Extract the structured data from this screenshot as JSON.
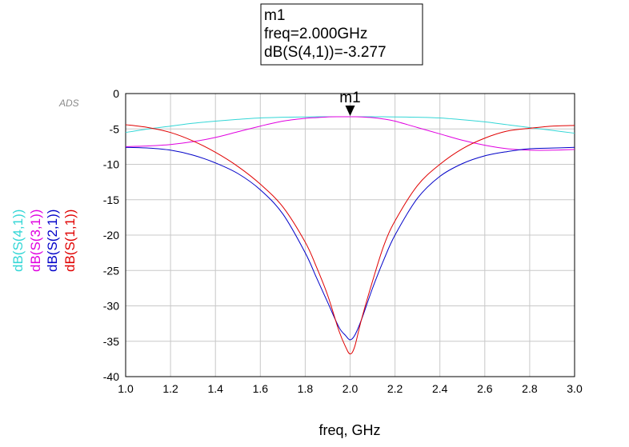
{
  "marker": {
    "name": "m1",
    "lines": [
      "m1",
      "freq=2.000GHz",
      "dB(S(4,1))=-3.277"
    ],
    "x": 2.0,
    "y": -3.277
  },
  "watermark": "ADS",
  "chart_data": {
    "type": "line",
    "xlabel": "freq, GHz",
    "ylabel": "",
    "xlim": [
      1.0,
      3.0
    ],
    "ylim": [
      -40,
      0
    ],
    "x_ticks": [
      "1.0",
      "1.2",
      "1.4",
      "1.6",
      "1.8",
      "2.0",
      "2.2",
      "2.4",
      "2.6",
      "2.8",
      "3.0"
    ],
    "y_ticks": [
      "0",
      "-5",
      "-10",
      "-15",
      "-20",
      "-25",
      "-30",
      "-35",
      "-40"
    ],
    "grid": true,
    "legend": "left-vertical",
    "x": [
      1.0,
      1.1,
      1.2,
      1.3,
      1.4,
      1.5,
      1.6,
      1.7,
      1.8,
      1.85,
      1.9,
      1.95,
      1.98,
      2.0,
      2.02,
      2.05,
      2.1,
      2.15,
      2.2,
      2.3,
      2.4,
      2.5,
      2.6,
      2.7,
      2.8,
      2.9,
      3.0
    ],
    "series": [
      {
        "name": "dB(S(4,1))",
        "color": "#33d6d6",
        "values": [
          -5.5,
          -5.0,
          -4.6,
          -4.2,
          -3.9,
          -3.65,
          -3.45,
          -3.35,
          -3.3,
          -3.28,
          -3.28,
          -3.277,
          -3.277,
          -3.277,
          -3.277,
          -3.277,
          -3.28,
          -3.28,
          -3.3,
          -3.35,
          -3.45,
          -3.7,
          -4.0,
          -4.4,
          -4.8,
          -5.2,
          -5.6
        ]
      },
      {
        "name": "dB(S(3,1))",
        "color": "#e000e0",
        "values": [
          -7.5,
          -7.4,
          -7.2,
          -6.8,
          -6.2,
          -5.4,
          -4.6,
          -3.9,
          -3.5,
          -3.4,
          -3.3,
          -3.28,
          -3.28,
          -3.277,
          -3.28,
          -3.3,
          -3.4,
          -3.6,
          -3.9,
          -4.8,
          -5.7,
          -6.6,
          -7.3,
          -7.8,
          -8.0,
          -8.0,
          -7.9
        ]
      },
      {
        "name": "dB(S(2,1))",
        "color": "#0000c8",
        "values": [
          -7.6,
          -7.7,
          -8.0,
          -8.7,
          -9.8,
          -11.3,
          -13.6,
          -17.0,
          -22.5,
          -26.0,
          -29.5,
          -33.0,
          -34.2,
          -34.8,
          -34.2,
          -32.0,
          -27.5,
          -23.5,
          -20.0,
          -14.8,
          -11.7,
          -9.9,
          -8.8,
          -8.2,
          -7.8,
          -7.7,
          -7.6
        ]
      },
      {
        "name": "dB(S(1,1))",
        "color": "#e00000",
        "values": [
          -4.4,
          -4.8,
          -5.5,
          -6.7,
          -8.3,
          -10.3,
          -12.8,
          -16.0,
          -21.0,
          -24.5,
          -28.5,
          -33.5,
          -35.8,
          -36.8,
          -35.8,
          -32.0,
          -26.5,
          -21.5,
          -18.0,
          -13.0,
          -10.0,
          -7.8,
          -6.3,
          -5.3,
          -4.9,
          -4.6,
          -4.5
        ]
      }
    ]
  }
}
